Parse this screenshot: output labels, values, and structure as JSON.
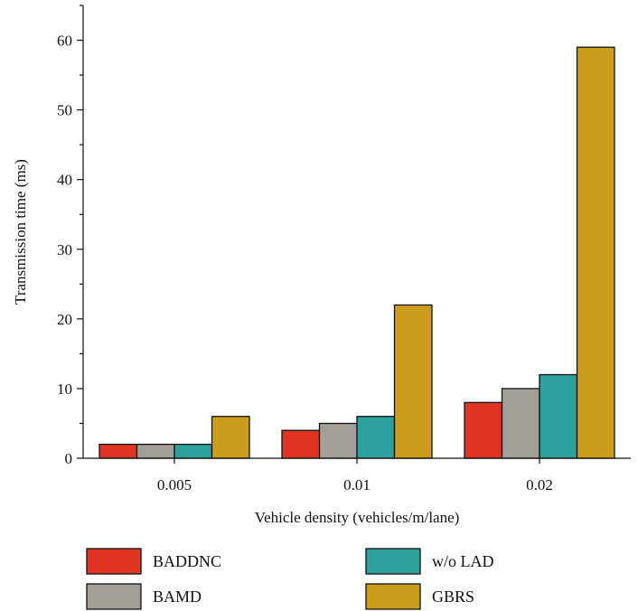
{
  "chart_data": {
    "type": "bar",
    "title": "",
    "xlabel": "Vehicle density (vehicles/m/lane)",
    "ylabel": "Transmission time (ms)",
    "categories": [
      "0.005",
      "0.01",
      "0.02"
    ],
    "ylim": [
      0,
      65
    ],
    "yticks": [
      0,
      10,
      20,
      30,
      40,
      50,
      60
    ],
    "yminor_step": 5,
    "grid": false,
    "legend_position": "bottom",
    "series": [
      {
        "name": "BADDNC",
        "color": "#e03424",
        "values": [
          2,
          4,
          8
        ]
      },
      {
        "name": "BAMD",
        "color": "#a39e97",
        "values": [
          2,
          5,
          10
        ]
      },
      {
        "name": "w/o LAD",
        "color": "#2ea19e",
        "values": [
          2,
          6,
          12
        ]
      },
      {
        "name": "GBRS",
        "color": "#cc9c1c",
        "values": [
          6,
          22,
          59
        ]
      }
    ]
  }
}
